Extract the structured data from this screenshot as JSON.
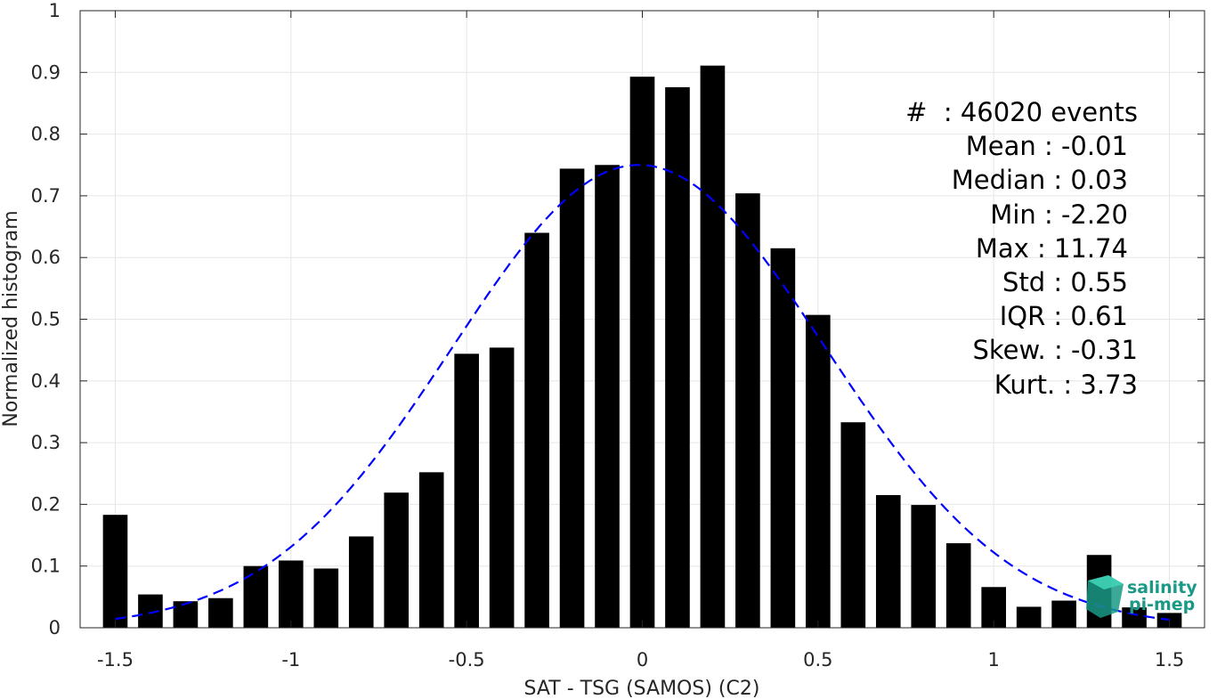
{
  "chart_data": {
    "type": "bar",
    "xlabel": "SAT - TSG (SAMOS) (C2)",
    "ylabel": "Normalized histogram",
    "xlim": [
      -1.6,
      1.6
    ],
    "ylim": [
      0,
      1
    ],
    "xticks": [
      -1.5,
      -1,
      -0.5,
      0,
      0.5,
      1,
      1.5
    ],
    "xtick_labels": [
      "-1.5",
      "-1",
      "-0.5",
      "0",
      "0.5",
      "1",
      "1.5"
    ],
    "yticks": [
      0,
      0.1,
      0.2,
      0.3,
      0.4,
      0.5,
      0.6,
      0.7,
      0.8,
      0.9,
      1
    ],
    "ytick_labels": [
      "0",
      "0.1",
      "0.2",
      "0.3",
      "0.4",
      "0.5",
      "0.6",
      "0.7",
      "0.8",
      "0.9",
      "1"
    ],
    "grid": true,
    "bar_width": 0.07,
    "bar_color": "#000000",
    "bins": [
      -1.5,
      -1.4,
      -1.3,
      -1.2,
      -1.1,
      -1.0,
      -0.9,
      -0.8,
      -0.7,
      -0.6,
      -0.5,
      -0.4,
      -0.3,
      -0.2,
      -0.1,
      0.0,
      0.1,
      0.2,
      0.3,
      0.4,
      0.5,
      0.6,
      0.7,
      0.8,
      0.9,
      1.0,
      1.1,
      1.2,
      1.3,
      1.4,
      1.5
    ],
    "values": [
      0.183,
      0.054,
      0.043,
      0.048,
      0.1,
      0.109,
      0.096,
      0.148,
      0.219,
      0.252,
      0.444,
      0.454,
      0.64,
      0.744,
      0.75,
      0.893,
      0.876,
      0.911,
      0.704,
      0.615,
      0.507,
      0.333,
      0.215,
      0.199,
      0.137,
      0.066,
      0.034,
      0.044,
      0.118,
      0.033,
      0.024
    ],
    "fit_curve": {
      "style": "dashed",
      "color": "#0000ff",
      "mean": -0.01,
      "std": 0.53,
      "peak": 0.75,
      "x_range": [
        -1.5,
        1.5
      ]
    }
  },
  "stats": {
    "lines": [
      "#  : 46020 events",
      "Mean : -0.01",
      "Median : 0.03",
      "Min : -2.20",
      "Max : 11.74",
      "Std : 0.55",
      "IQR : 0.61",
      "Skew. : -0.31",
      "Kurt. : 3.73"
    ]
  },
  "logo": {
    "line1": "salinity",
    "line2": "pi-mep",
    "color": "#1a9a86"
  }
}
